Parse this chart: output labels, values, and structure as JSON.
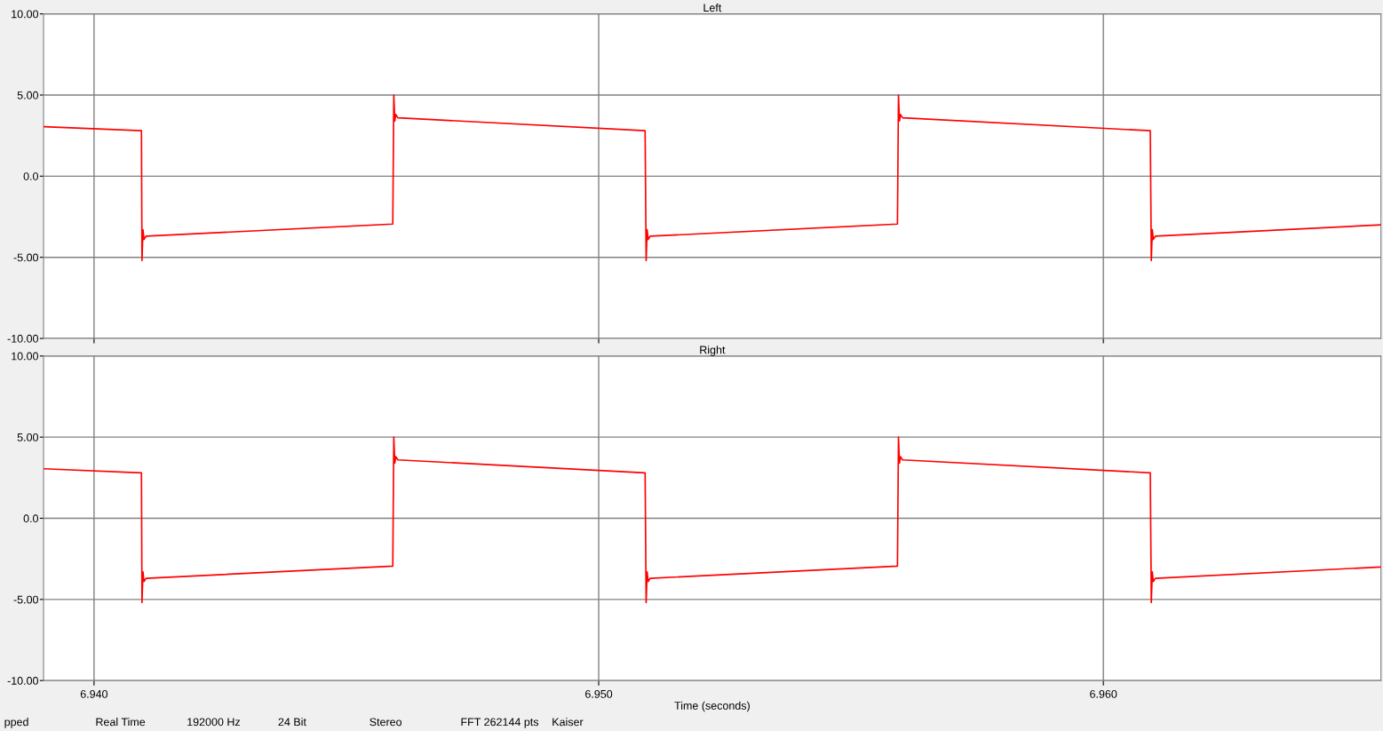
{
  "chart_data": [
    {
      "type": "line",
      "title": "Left",
      "tick_labels": "y",
      "grid": true,
      "marker": "none",
      "line_style": "solid",
      "xlim": [
        6.939,
        6.9655
      ],
      "xticks": [
        {
          "value": 6.94,
          "label": null
        },
        {
          "value": 6.95,
          "label": null
        },
        {
          "value": 6.96,
          "label": null
        }
      ],
      "ylim": [
        -10,
        10
      ],
      "yticks": [
        {
          "value": -10,
          "label": "-10.00"
        },
        {
          "value": -5,
          "label": "-5.00"
        },
        {
          "value": 0,
          "label": "0.0"
        },
        {
          "value": 5,
          "label": "5.00"
        },
        {
          "value": 10,
          "label": "10.00"
        }
      ],
      "x": [
        6.939,
        6.94094,
        6.94095,
        6.94097,
        6.94099,
        6.94103,
        6.94592,
        6.94594,
        6.94596,
        6.94598,
        6.94602,
        6.95092,
        6.95094,
        6.95096,
        6.95098,
        6.95102,
        6.95592,
        6.95594,
        6.95596,
        6.95598,
        6.95602,
        6.96093,
        6.96095,
        6.96097,
        6.96099,
        6.96103,
        6.9655
      ],
      "series": [
        {
          "color": "#ff0000",
          "values": [
            3.05,
            2.8,
            -5.2,
            -3.3,
            -3.9,
            -3.7,
            -2.95,
            5.0,
            3.4,
            3.8,
            3.6,
            2.8,
            -5.2,
            -3.3,
            -3.9,
            -3.7,
            -2.95,
            5.0,
            3.4,
            3.8,
            3.6,
            2.8,
            -5.2,
            -3.3,
            -3.9,
            -3.7,
            -3.0
          ]
        }
      ]
    },
    {
      "type": "line",
      "title": "Right",
      "xlabel": "Time (seconds)",
      "grid": true,
      "marker": "none",
      "line_style": "solid",
      "xlim": [
        6.939,
        6.9655
      ],
      "xticks": [
        {
          "value": 6.94,
          "label": "6.940"
        },
        {
          "value": 6.95,
          "label": "6.950"
        },
        {
          "value": 6.96,
          "label": "6.960"
        }
      ],
      "ylim": [
        -10,
        10
      ],
      "yticks": [
        {
          "value": -10,
          "label": "-10.00"
        },
        {
          "value": -5,
          "label": "-5.00"
        },
        {
          "value": 0,
          "label": "0.0"
        },
        {
          "value": 5,
          "label": "5.00"
        },
        {
          "value": 10,
          "label": "10.00"
        }
      ],
      "x": [
        6.939,
        6.94094,
        6.94095,
        6.94097,
        6.94099,
        6.94103,
        6.94592,
        6.94594,
        6.94596,
        6.94598,
        6.94602,
        6.95092,
        6.95094,
        6.95096,
        6.95098,
        6.95102,
        6.95592,
        6.95594,
        6.95596,
        6.95598,
        6.95602,
        6.96093,
        6.96095,
        6.96097,
        6.96099,
        6.96103,
        6.9655
      ],
      "series": [
        {
          "color": "#ff0000",
          "values": [
            3.05,
            2.8,
            -5.2,
            -3.3,
            -3.9,
            -3.7,
            -2.95,
            5.0,
            3.4,
            3.8,
            3.6,
            2.8,
            -5.2,
            -3.3,
            -3.9,
            -3.7,
            -2.95,
            5.0,
            3.4,
            3.8,
            3.6,
            2.8,
            -5.2,
            -3.3,
            -3.9,
            -3.7,
            -3.0
          ]
        }
      ],
      "annotations": [
        "pped",
        "Real Time",
        "192000 Hz",
        "24 Bit",
        "Stereo",
        "FFT 262144 pts",
        "Kaiser"
      ]
    }
  ]
}
